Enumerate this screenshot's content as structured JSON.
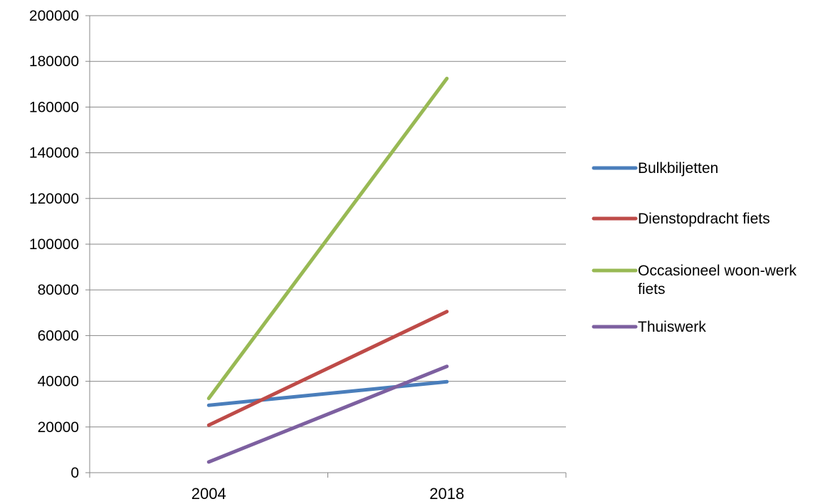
{
  "chart_data": {
    "type": "line",
    "categories": [
      "2004",
      "2018"
    ],
    "series": [
      {
        "name": "Bulkbiljetten",
        "values": [
          29500,
          39800
        ],
        "color": "#4a7ebb"
      },
      {
        "name": "Dienstopdracht fiets",
        "values": [
          20800,
          70500
        ],
        "color": "#be4b48"
      },
      {
        "name": "Occasioneel woon-werk fiets",
        "values": [
          32500,
          172500
        ],
        "color": "#98b954"
      },
      {
        "name": "Thuiswerk",
        "values": [
          4700,
          46500
        ],
        "color": "#7d60a0"
      }
    ],
    "yticks": [
      "0",
      "20000",
      "40000",
      "60000",
      "80000",
      "100000",
      "120000",
      "140000",
      "160000",
      "180000",
      "200000"
    ],
    "ylim": [
      0,
      200000
    ],
    "ystep": 20000,
    "grid": true,
    "legend_position": "right",
    "gridline_color": "#878787",
    "title": "",
    "xlabel": "",
    "ylabel": ""
  }
}
